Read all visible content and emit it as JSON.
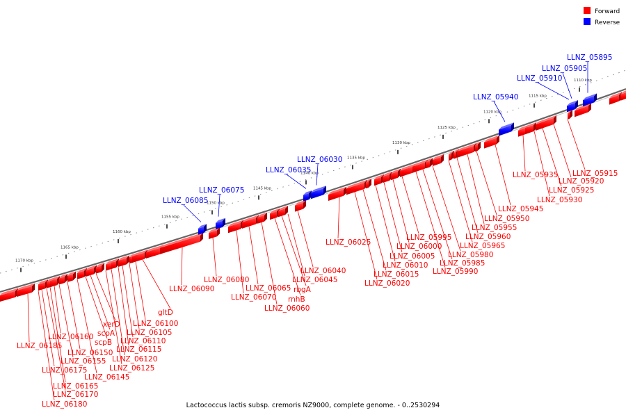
{
  "legend": {
    "forward": {
      "label": "Forward",
      "color": "#ff0000"
    },
    "reverse": {
      "label": "Reverse",
      "color": "#0000ff"
    }
  },
  "caption": "Lactococcus lactis subsp. cremoris NZ9000, complete genome. - 0..2530294",
  "scale_labels": [
    "1170 kbp",
    "1165 kbp",
    "1160 kbp",
    "1155 kbp",
    "1150 kbp",
    "1145 kbp",
    "1140 kbp",
    "1135 kbp",
    "1130 kbp",
    "1125 kbp",
    "1120 kbp",
    "1115 kbp",
    "1110 kbp"
  ],
  "genes_forward": [
    "LLNZ_06185",
    "LLNZ_06180",
    "LLNZ_06175",
    "LLNZ_06170",
    "LLNZ_06165",
    "LLNZ_06160",
    "LLNZ_06155",
    "LLNZ_06150",
    "LLNZ_06145",
    "scpB",
    "scpA",
    "xerD",
    "LLNZ_06125",
    "LLNZ_06120",
    "LLNZ_06115",
    "LLNZ_06110",
    "LLNZ_06105",
    "LLNZ_06100",
    "gltD",
    "LLNZ_06090",
    "LLNZ_06080",
    "LLNZ_06070",
    "LLNZ_06065",
    "LLNZ_06060",
    "rnhB",
    "rbgA",
    "LLNZ_06045",
    "LLNZ_06040",
    "LLNZ_06025",
    "LLNZ_06020",
    "LLNZ_06015",
    "LLNZ_06010",
    "LLNZ_06005",
    "LLNZ_06000",
    "LLNZ_05995",
    "LLNZ_05990",
    "LLNZ_05985",
    "LLNZ_05980",
    "LLNZ_05965",
    "LLNZ_05960",
    "LLNZ_05955",
    "LLNZ_05950",
    "LLNZ_05945",
    "LLNZ_05935",
    "LLNZ_05930",
    "LLNZ_05925",
    "LLNZ_05920",
    "LLNZ_05915"
  ],
  "genes_reverse": [
    "LLNZ_06085",
    "LLNZ_06075",
    "LLNZ_06035",
    "LLNZ_06030",
    "LLNZ_05940",
    "LLNZ_05910",
    "LLNZ_05905",
    "LLNZ_05895"
  ]
}
